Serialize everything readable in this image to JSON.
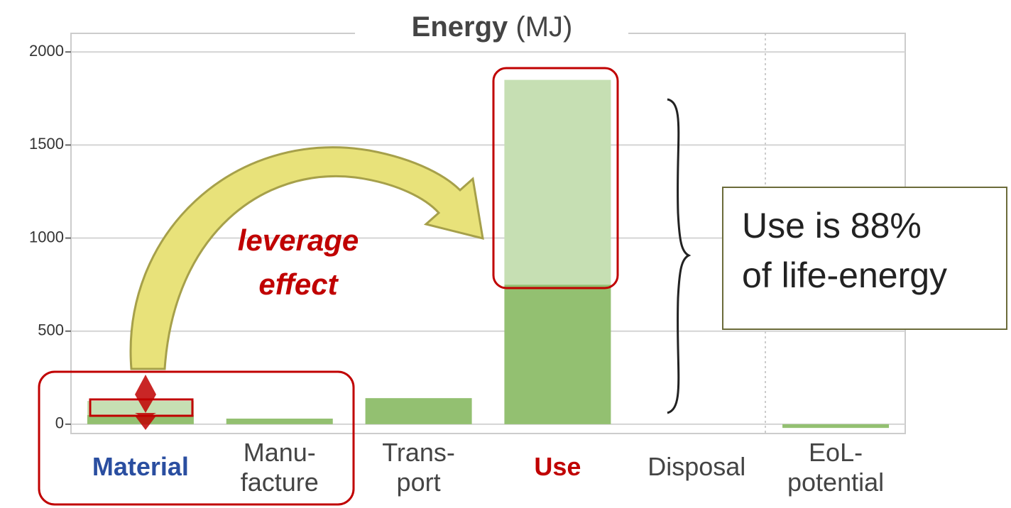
{
  "chart_data": {
    "type": "stacked_bar",
    "title": "Energy",
    "unit": "(MJ)",
    "categories": [
      "Material",
      "Manu-\nfacture",
      "Trans-\nport",
      "Use",
      "Disposal",
      "EoL-\npotential"
    ],
    "series": [
      {
        "color": "#93c071",
        "values": [
          50,
          30,
          140,
          750,
          0,
          -20
        ]
      },
      {
        "color": "#c6dfb3",
        "values": [
          75,
          0,
          0,
          1100,
          0,
          0
        ]
      }
    ],
    "ylim": [
      -50,
      2100
    ],
    "yticks": [
      0,
      500,
      1000,
      1500,
      2000
    ],
    "grid": true,
    "annotations": [
      "leverage\neffect",
      "Use is 88%\nof life-energy"
    ]
  }
}
